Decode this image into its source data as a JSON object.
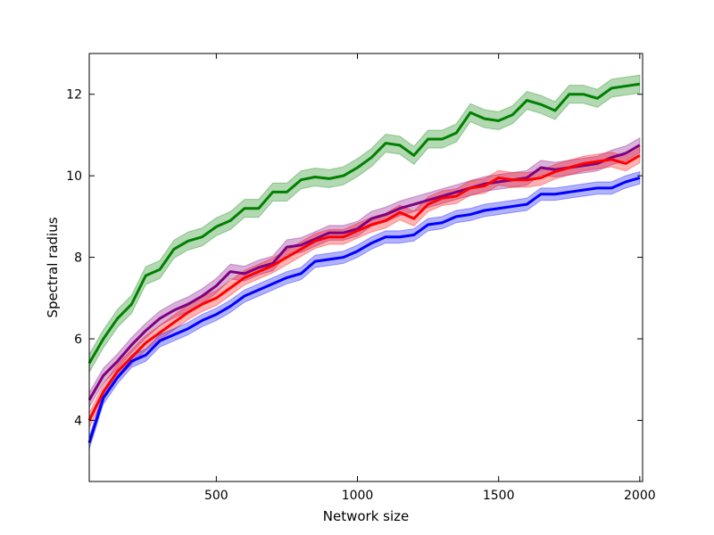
{
  "chart_data": {
    "type": "line",
    "title": "",
    "xlabel": "Network size",
    "ylabel": "Spectral radius",
    "xlim": [
      50,
      2010
    ],
    "ylim": [
      2.5,
      13.0
    ],
    "xticks": [
      500,
      1000,
      1500,
      2000
    ],
    "yticks": [
      4,
      6,
      8,
      10,
      12
    ],
    "grid": false,
    "legend": "none",
    "x": [
      50,
      100,
      150,
      200,
      250,
      300,
      350,
      400,
      450,
      500,
      550,
      600,
      650,
      700,
      750,
      800,
      850,
      900,
      950,
      1000,
      1050,
      1100,
      1150,
      1200,
      1250,
      1300,
      1350,
      1400,
      1450,
      1500,
      1550,
      1600,
      1650,
      1700,
      1750,
      1800,
      1850,
      1900,
      1950,
      2000
    ],
    "series": [
      {
        "color": "#008000",
        "band_color": "#008000",
        "values": [
          5.4,
          6.0,
          6.5,
          6.85,
          7.55,
          7.7,
          8.2,
          8.4,
          8.5,
          8.75,
          8.9,
          9.2,
          9.2,
          9.6,
          9.6,
          9.9,
          9.97,
          9.93,
          10.0,
          10.2,
          10.45,
          10.8,
          10.75,
          10.5,
          10.9,
          10.9,
          11.05,
          11.55,
          11.4,
          11.35,
          11.5,
          11.85,
          11.75,
          11.6,
          12.0,
          12.0,
          11.9,
          12.15,
          12.2,
          12.25
        ],
        "band": 0.22
      },
      {
        "color": "#800080",
        "band_color": "#800080",
        "values": [
          4.5,
          5.1,
          5.45,
          5.85,
          6.2,
          6.5,
          6.7,
          6.85,
          7.05,
          7.3,
          7.65,
          7.6,
          7.75,
          7.85,
          8.25,
          8.3,
          8.45,
          8.6,
          8.6,
          8.7,
          8.95,
          9.05,
          9.2,
          9.3,
          9.4,
          9.5,
          9.6,
          9.7,
          9.8,
          9.85,
          9.9,
          9.95,
          10.2,
          10.15,
          10.2,
          10.25,
          10.3,
          10.45,
          10.55,
          10.75
        ],
        "band": 0.18
      },
      {
        "color": "#ff0000",
        "band_color": "#ff0000",
        "values": [
          4.0,
          4.7,
          5.2,
          5.55,
          5.9,
          6.15,
          6.4,
          6.65,
          6.85,
          7.0,
          7.25,
          7.5,
          7.65,
          7.8,
          8.0,
          8.2,
          8.4,
          8.5,
          8.5,
          8.65,
          8.8,
          8.9,
          9.1,
          8.95,
          9.3,
          9.45,
          9.5,
          9.7,
          9.75,
          9.95,
          9.9,
          9.9,
          9.95,
          10.1,
          10.2,
          10.3,
          10.35,
          10.4,
          10.3,
          10.5
        ],
        "band": 0.18
      },
      {
        "color": "#0000ff",
        "band_color": "#0000ff",
        "values": [
          3.45,
          4.55,
          5.05,
          5.45,
          5.6,
          5.95,
          6.1,
          6.25,
          6.45,
          6.6,
          6.8,
          7.05,
          7.2,
          7.35,
          7.5,
          7.6,
          7.9,
          7.95,
          8.0,
          8.15,
          8.35,
          8.5,
          8.5,
          8.55,
          8.8,
          8.85,
          9.0,
          9.05,
          9.15,
          9.2,
          9.25,
          9.3,
          9.55,
          9.55,
          9.6,
          9.65,
          9.7,
          9.7,
          9.85,
          9.95
        ],
        "band": 0.15
      }
    ]
  }
}
